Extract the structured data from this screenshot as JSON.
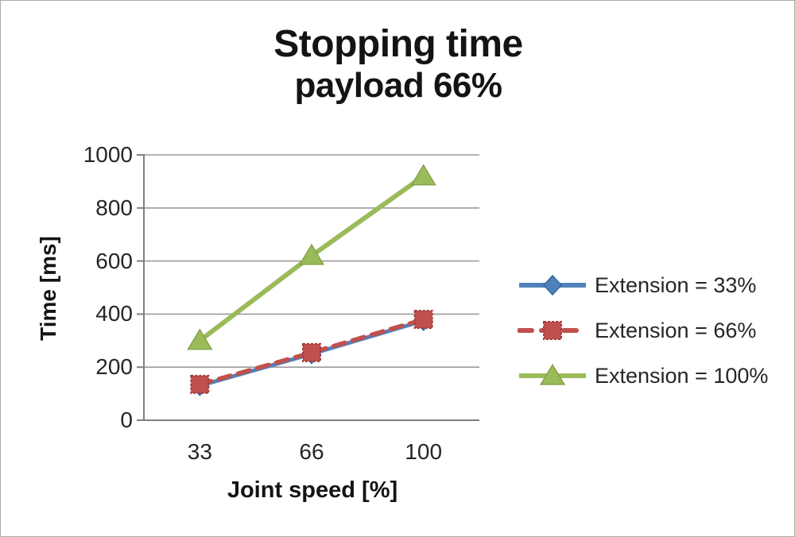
{
  "window": {
    "background": "#ffffff",
    "border_color": "#a9a9a9"
  },
  "header": {
    "title": "Stopping time",
    "subtitle": "payload 66%"
  },
  "chart_data": {
    "type": "line",
    "title": "Stopping time",
    "subtitle": "payload 66%",
    "xlabel": "Joint speed [%]",
    "ylabel": "Time [ms]",
    "categories": [
      "33",
      "66",
      "100"
    ],
    "x_values": [
      33,
      66,
      100
    ],
    "ylim": [
      0,
      1000
    ],
    "ytick_interval": 200,
    "yticks": [
      "0",
      "200",
      "400",
      "600",
      "800",
      "1000"
    ],
    "grid": "horizontal",
    "legend_position": "right",
    "series": [
      {
        "name": "Extension = 33%",
        "values": [
          130,
          250,
          375
        ],
        "color": "#4F81BD",
        "marker_edge": "#38699E",
        "marker": "diamond",
        "line_style": "solid",
        "line_width": 5
      },
      {
        "name": "Extension = 66%",
        "values": [
          135,
          255,
          380
        ],
        "color": "#C0504D",
        "marker_edge": "#9E3D3B",
        "marker": "square",
        "line_style": "dashed",
        "line_width": 5.5
      },
      {
        "name": "Extension = 100%",
        "values": [
          300,
          620,
          920
        ],
        "color": "#9BBB59",
        "marker_edge": "#7E9A44",
        "marker": "triangle",
        "line_style": "solid",
        "line_width": 6
      }
    ],
    "colors": {
      "gridline": "#9b9b9b",
      "axis": "#808080",
      "text": "#262626"
    }
  }
}
